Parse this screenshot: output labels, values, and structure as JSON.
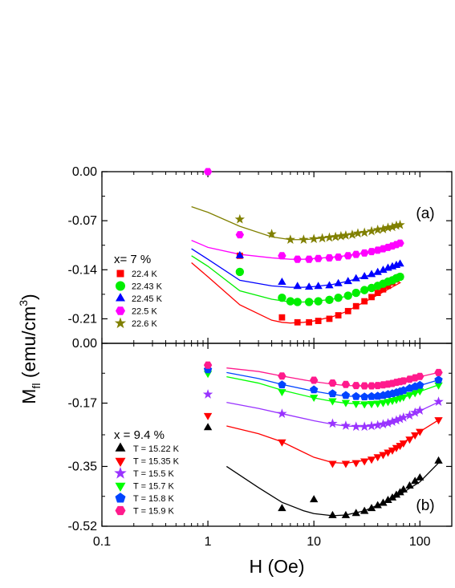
{
  "figure": {
    "xlabel": "H (Oe)",
    "ylabel_main": "M",
    "ylabel_sub": "fl",
    "ylabel_units": " (emu/cm",
    "ylabel_sup": "3",
    "ylabel_close": ")"
  },
  "chart_data": [
    {
      "type": "scatter",
      "panel_label": "(a)",
      "legend_title": "x= 7 %",
      "legend_placement": "left",
      "xscale": "log",
      "xlim": [
        0.1,
        200
      ],
      "ylim": [
        -0.245,
        0.0
      ],
      "yticks": [
        0.0,
        -0.07,
        -0.14,
        -0.21
      ],
      "ytick_labels": [
        "0.00",
        "-0.07",
        "-0.14",
        "-0.21"
      ],
      "xticks": [
        0.1,
        1,
        10,
        100
      ],
      "xtick_labels": [
        "0.1",
        "1",
        "10",
        "100"
      ],
      "grid": false,
      "series": [
        {
          "name": "22.4 K",
          "color": "#ff0000",
          "marker": "square",
          "x": [
            2,
            5,
            7,
            9,
            11,
            14,
            17,
            21,
            25,
            30,
            35,
            40,
            45,
            50,
            55,
            60,
            65
          ],
          "y": [
            -0.12,
            -0.208,
            -0.215,
            -0.215,
            -0.213,
            -0.21,
            -0.205,
            -0.199,
            -0.192,
            -0.185,
            -0.179,
            -0.173,
            -0.168,
            -0.163,
            -0.158,
            -0.154,
            -0.15
          ],
          "fit_x": [
            0.7,
            1,
            2,
            4,
            5,
            6,
            8,
            10,
            15,
            20,
            30,
            40,
            50,
            66
          ],
          "fit_y": [
            -0.13,
            -0.15,
            -0.19,
            -0.212,
            -0.215,
            -0.216,
            -0.215,
            -0.213,
            -0.207,
            -0.2,
            -0.186,
            -0.176,
            -0.168,
            -0.158
          ]
        },
        {
          "name": "22.43 K",
          "color": "#00ee00",
          "marker": "circle",
          "x": [
            2,
            5,
            6,
            7,
            9,
            11,
            14,
            17,
            21,
            25,
            30,
            35,
            40,
            45,
            50,
            55,
            60,
            65
          ],
          "y": [
            -0.143,
            -0.18,
            -0.185,
            -0.186,
            -0.186,
            -0.185,
            -0.183,
            -0.18,
            -0.177,
            -0.173,
            -0.169,
            -0.166,
            -0.163,
            -0.16,
            -0.157,
            -0.155,
            -0.152,
            -0.15
          ],
          "fit_x": [
            0.7,
            1,
            2,
            4,
            6,
            8,
            10,
            15,
            20,
            30,
            40,
            50,
            66
          ],
          "fit_y": [
            -0.12,
            -0.135,
            -0.17,
            -0.182,
            -0.186,
            -0.186,
            -0.185,
            -0.182,
            -0.178,
            -0.17,
            -0.164,
            -0.158,
            -0.152
          ]
        },
        {
          "name": "22.45 K",
          "color": "#0000ff",
          "marker": "triangle",
          "x": [
            2,
            5,
            7,
            9,
            11,
            14,
            17,
            21,
            25,
            30,
            35,
            40,
            45,
            50,
            55,
            60,
            65
          ],
          "y": [
            -0.12,
            -0.158,
            -0.164,
            -0.165,
            -0.164,
            -0.163,
            -0.16,
            -0.157,
            -0.153,
            -0.15,
            -0.147,
            -0.144,
            -0.141,
            -0.138,
            -0.136,
            -0.134,
            -0.132
          ],
          "fit_x": [
            0.7,
            1,
            2,
            4,
            6,
            8,
            10,
            15,
            20,
            30,
            40,
            50,
            66
          ],
          "fit_y": [
            -0.11,
            -0.125,
            -0.155,
            -0.163,
            -0.165,
            -0.165,
            -0.164,
            -0.161,
            -0.157,
            -0.15,
            -0.144,
            -0.139,
            -0.133
          ]
        },
        {
          "name": "22.5 K",
          "color": "#ff00ff",
          "marker": "hexagon",
          "x": [
            1,
            2,
            5,
            7,
            9,
            11,
            14,
            17,
            21,
            25,
            30,
            35,
            40,
            45,
            50,
            55,
            60,
            65
          ],
          "y": [
            0.0,
            -0.09,
            -0.12,
            -0.125,
            -0.125,
            -0.124,
            -0.123,
            -0.122,
            -0.12,
            -0.118,
            -0.116,
            -0.114,
            -0.112,
            -0.11,
            -0.108,
            -0.106,
            -0.104,
            -0.102
          ],
          "fit_x": [
            0.7,
            1,
            2,
            4,
            6,
            8,
            10,
            15,
            20,
            30,
            40,
            50,
            66
          ],
          "fit_y": [
            -0.098,
            -0.108,
            -0.118,
            -0.123,
            -0.125,
            -0.125,
            -0.124,
            -0.122,
            -0.12,
            -0.116,
            -0.112,
            -0.108,
            -0.103
          ]
        },
        {
          "name": "22.6 K",
          "color": "#808000",
          "marker": "star",
          "x": [
            2,
            4,
            6,
            8,
            10,
            12,
            14,
            16,
            18,
            20,
            23,
            26,
            30,
            35,
            40,
            45,
            50,
            55,
            60,
            65
          ],
          "y": [
            -0.068,
            -0.089,
            -0.097,
            -0.097,
            -0.096,
            -0.095,
            -0.094,
            -0.093,
            -0.092,
            -0.091,
            -0.09,
            -0.088,
            -0.087,
            -0.085,
            -0.083,
            -0.082,
            -0.08,
            -0.079,
            -0.077,
            -0.076
          ],
          "fit_x": [
            0.7,
            1,
            2,
            4,
            6,
            8,
            10,
            15,
            20,
            30,
            40,
            50,
            66
          ],
          "fit_y": [
            -0.05,
            -0.058,
            -0.078,
            -0.093,
            -0.097,
            -0.097,
            -0.096,
            -0.093,
            -0.09,
            -0.086,
            -0.082,
            -0.079,
            -0.075
          ]
        }
      ]
    },
    {
      "type": "scatter",
      "panel_label": "(b)",
      "legend_title": "x = 9.4 %",
      "legend_placement": "left",
      "xscale": "log",
      "xlim": [
        0.1,
        200
      ],
      "ylim": [
        -0.52,
        0.0
      ],
      "yticks": [
        0.0,
        -0.17,
        -0.35,
        -0.52
      ],
      "ytick_labels": [
        "0.00",
        "-0.17",
        "-0.35",
        "-0.52"
      ],
      "xticks": [
        0.1,
        1,
        10,
        100
      ],
      "xtick_labels": [
        "0.1",
        "1",
        "10",
        "100"
      ],
      "grid": false,
      "series": [
        {
          "name": "T = 15.22 K",
          "color": "#000000",
          "marker": "triangle",
          "x": [
            1,
            5,
            10,
            15,
            20,
            25,
            30,
            35,
            40,
            45,
            50,
            55,
            60,
            65,
            70,
            80,
            90,
            100,
            150
          ],
          "y": [
            -0.24,
            -0.47,
            -0.445,
            -0.49,
            -0.49,
            -0.484,
            -0.478,
            -0.47,
            -0.462,
            -0.455,
            -0.447,
            -0.44,
            -0.432,
            -0.425,
            -0.417,
            -0.406,
            -0.393,
            -0.383,
            -0.335
          ],
          "fit_x": [
            1.5,
            3,
            5,
            8,
            10,
            15,
            20,
            30,
            40,
            60,
            80,
            100,
            150
          ],
          "fit_y": [
            -0.35,
            -0.41,
            -0.452,
            -0.476,
            -0.484,
            -0.49,
            -0.488,
            -0.476,
            -0.46,
            -0.437,
            -0.412,
            -0.394,
            -0.34
          ]
        },
        {
          "name": "T = 15.35 K",
          "color": "#ff0000",
          "marker": "invtriangle",
          "x": [
            1,
            5,
            15,
            20,
            25,
            30,
            35,
            40,
            45,
            50,
            55,
            60,
            65,
            70,
            80,
            90,
            100,
            150
          ],
          "y": [
            -0.205,
            -0.28,
            -0.341,
            -0.341,
            -0.339,
            -0.334,
            -0.329,
            -0.322,
            -0.316,
            -0.309,
            -0.303,
            -0.296,
            -0.29,
            -0.283,
            -0.272,
            -0.26,
            -0.25,
            -0.217
          ],
          "fit_x": [
            1.5,
            3,
            5,
            10,
            15,
            20,
            30,
            40,
            60,
            80,
            100,
            150
          ],
          "fit_y": [
            -0.235,
            -0.257,
            -0.28,
            -0.324,
            -0.339,
            -0.341,
            -0.333,
            -0.321,
            -0.294,
            -0.27,
            -0.251,
            -0.218
          ]
        },
        {
          "name": "T = 15.5 K",
          "color": "#9933ff",
          "marker": "star",
          "x": [
            1,
            5,
            15,
            20,
            25,
            30,
            35,
            40,
            45,
            50,
            55,
            60,
            65,
            70,
            80,
            90,
            100,
            150
          ],
          "y": [
            -0.145,
            -0.2,
            -0.228,
            -0.234,
            -0.237,
            -0.237,
            -0.235,
            -0.233,
            -0.23,
            -0.227,
            -0.223,
            -0.219,
            -0.215,
            -0.211,
            -0.205,
            -0.197,
            -0.191,
            -0.166
          ],
          "fit_x": [
            1.5,
            3,
            5,
            10,
            15,
            20,
            30,
            40,
            60,
            80,
            100,
            150
          ],
          "fit_y": [
            -0.168,
            -0.185,
            -0.2,
            -0.22,
            -0.23,
            -0.235,
            -0.237,
            -0.233,
            -0.219,
            -0.205,
            -0.192,
            -0.167
          ]
        },
        {
          "name": "T = 15.7 K",
          "color": "#00ff00",
          "marker": "invtriangle",
          "x": [
            1,
            5,
            10,
            15,
            20,
            25,
            30,
            35,
            40,
            45,
            50,
            55,
            60,
            65,
            70,
            80,
            90,
            100,
            150
          ],
          "y": [
            -0.085,
            -0.137,
            -0.153,
            -0.163,
            -0.168,
            -0.171,
            -0.172,
            -0.171,
            -0.17,
            -0.168,
            -0.165,
            -0.162,
            -0.159,
            -0.155,
            -0.152,
            -0.146,
            -0.14,
            -0.135,
            -0.118
          ],
          "fit_x": [
            1.5,
            3,
            5,
            10,
            15,
            20,
            30,
            40,
            60,
            80,
            100,
            150
          ],
          "fit_y": [
            -0.095,
            -0.113,
            -0.133,
            -0.155,
            -0.165,
            -0.17,
            -0.172,
            -0.17,
            -0.16,
            -0.148,
            -0.137,
            -0.118
          ]
        },
        {
          "name": "T = 15.8 K",
          "color": "#0044ff",
          "marker": "pentagon",
          "x": [
            1,
            5,
            10,
            15,
            20,
            25,
            30,
            35,
            40,
            45,
            50,
            55,
            60,
            65,
            70,
            80,
            90,
            100,
            150
          ],
          "y": [
            -0.075,
            -0.118,
            -0.132,
            -0.143,
            -0.148,
            -0.151,
            -0.152,
            -0.151,
            -0.15,
            -0.148,
            -0.145,
            -0.143,
            -0.14,
            -0.137,
            -0.134,
            -0.128,
            -0.123,
            -0.119,
            -0.104
          ],
          "fit_x": [
            1.5,
            3,
            5,
            10,
            15,
            20,
            30,
            40,
            60,
            80,
            100,
            150
          ],
          "fit_y": [
            -0.083,
            -0.1,
            -0.117,
            -0.136,
            -0.145,
            -0.15,
            -0.152,
            -0.15,
            -0.141,
            -0.13,
            -0.12,
            -0.104
          ]
        },
        {
          "name": "T = 15.9 K",
          "color": "#ff1a8c",
          "marker": "hexagon",
          "x": [
            1,
            5,
            10,
            15,
            20,
            25,
            30,
            35,
            40,
            45,
            50,
            55,
            60,
            65,
            70,
            80,
            90,
            100,
            150
          ],
          "y": [
            -0.062,
            -0.093,
            -0.105,
            -0.113,
            -0.117,
            -0.12,
            -0.121,
            -0.121,
            -0.12,
            -0.118,
            -0.116,
            -0.114,
            -0.111,
            -0.109,
            -0.107,
            -0.102,
            -0.098,
            -0.094,
            -0.083
          ],
          "fit_x": [
            1.5,
            3,
            5,
            10,
            15,
            20,
            30,
            40,
            60,
            80,
            100,
            150
          ],
          "fit_y": [
            -0.07,
            -0.08,
            -0.093,
            -0.109,
            -0.116,
            -0.12,
            -0.121,
            -0.119,
            -0.112,
            -0.103,
            -0.095,
            -0.083
          ]
        }
      ]
    }
  ]
}
